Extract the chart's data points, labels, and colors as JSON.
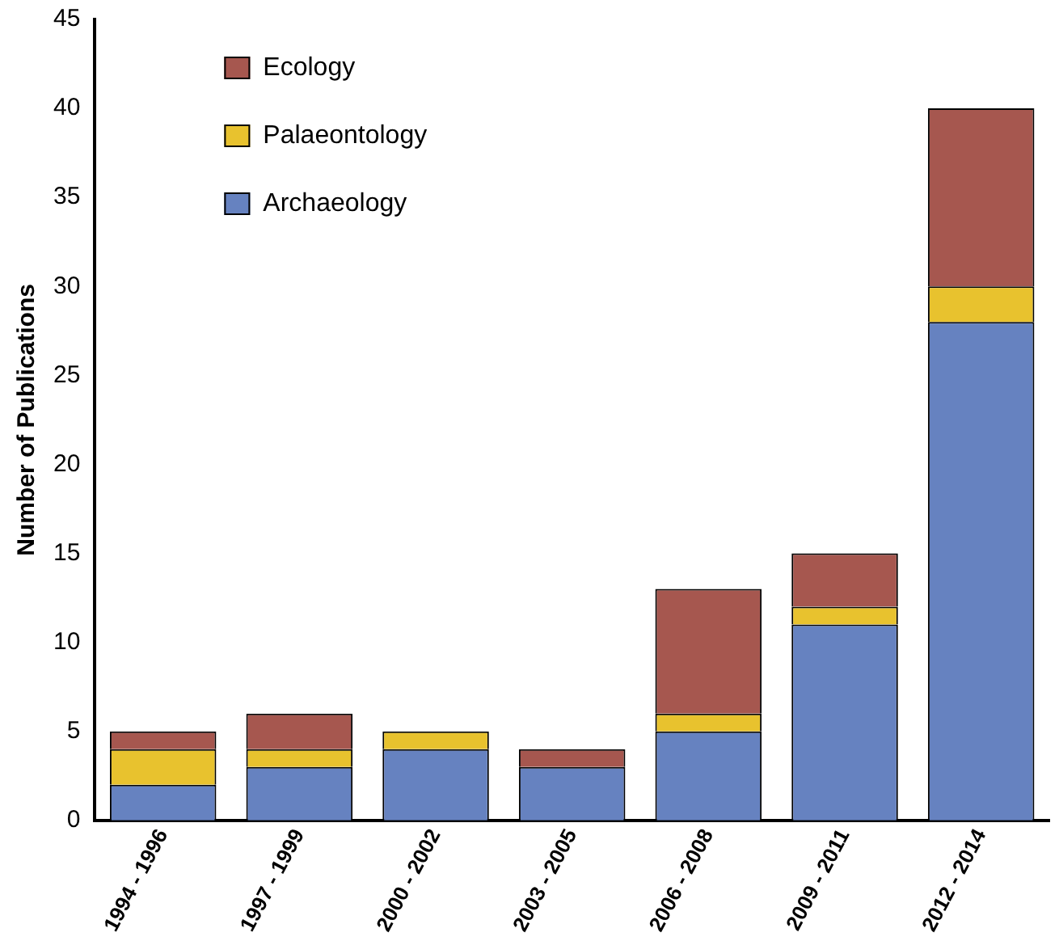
{
  "chart_data": {
    "type": "bar",
    "ylabel": "Number of Publications",
    "categories": [
      "1994 - 1996",
      "1997 - 1999",
      "2000 - 2002",
      "2003 - 2005",
      "2006 - 2008",
      "2009 - 2011",
      "2012 - 2014"
    ],
    "stacked": true,
    "ylim": [
      0,
      45
    ],
    "yticks": [
      0,
      5,
      10,
      15,
      20,
      25,
      30,
      35,
      40,
      45
    ],
    "grid": false,
    "legend": "top left",
    "series": [
      {
        "name": "Archaeology",
        "color": "#6682c0",
        "values": [
          2,
          3,
          4,
          3,
          5,
          11,
          28
        ]
      },
      {
        "name": "Palaeontology",
        "color": "#e8c22e",
        "values": [
          2,
          1,
          1,
          0,
          1,
          1,
          2
        ]
      },
      {
        "name": "Ecology",
        "color": "#a6574f",
        "values": [
          1,
          2,
          0,
          1,
          7,
          3,
          10
        ]
      }
    ]
  }
}
